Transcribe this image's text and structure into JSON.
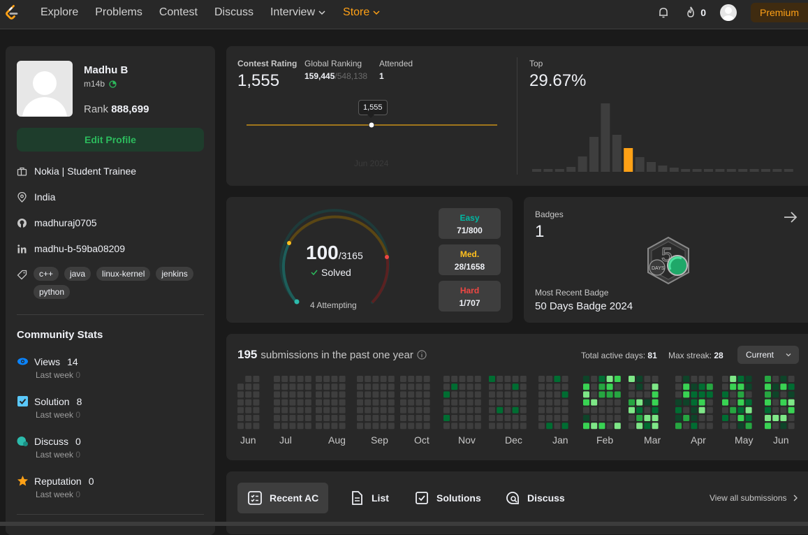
{
  "nav": {
    "links": [
      "Explore",
      "Problems",
      "Contest",
      "Discuss",
      "Interview",
      "Store"
    ],
    "streak": "0",
    "premium": "Premium"
  },
  "profile": {
    "name": "Madhu B",
    "handle": "m14b",
    "rank_label": "Rank",
    "rank": "888,699",
    "edit_profile": "Edit Profile",
    "company": "Nokia | Student Trainee",
    "location": "India",
    "github": "madhuraj0705",
    "linkedin": "madhu-b-59ba08209",
    "skills": [
      "c++",
      "java",
      "linux-kernel",
      "jenkins",
      "python"
    ]
  },
  "community": {
    "title": "Community Stats",
    "last_week_label": "Last week",
    "stats": [
      {
        "label": "Views",
        "value": "14",
        "last_week": "0",
        "icon": "eye-icon",
        "color": "#0a84ff"
      },
      {
        "label": "Solution",
        "value": "8",
        "last_week": "0",
        "icon": "solution-icon",
        "color": "#5ac8fa"
      },
      {
        "label": "Discuss",
        "value": "0",
        "last_week": "0",
        "icon": "discuss-icon",
        "color": "#2cbbac"
      },
      {
        "label": "Reputation",
        "value": "0",
        "last_week": "0",
        "icon": "star-icon",
        "color": "#ffa116"
      }
    ]
  },
  "contest": {
    "rating_label": "Contest Rating",
    "rating": "1,555",
    "global_label": "Global Ranking",
    "global_rank": "159,445",
    "global_total": "/548,138",
    "attended_label": "Attended",
    "attended": "1",
    "tooltip": "1,555",
    "date": "Jun 2024",
    "top_label": "Top",
    "top_value": "29.67%",
    "histogram": [
      0.04,
      0.04,
      0.04,
      0.07,
      0.22,
      0.5,
      0.98,
      0.53,
      0.34,
      0.21,
      0.14,
      0.09,
      0.06,
      0.04,
      0.04,
      0.04,
      0.04,
      0.04,
      0.04,
      0.04,
      0.04,
      0.04,
      0.04
    ],
    "highlight_index": 8
  },
  "solved": {
    "count": "100",
    "total": "/3165",
    "solved_label": "Solved",
    "attempting": "4 Attempting",
    "difficulties": [
      {
        "label": "Easy",
        "value": "71/800",
        "color": "#00b8a3"
      },
      {
        "label": "Med.",
        "value": "28/1658",
        "color": "#ffc01e"
      },
      {
        "label": "Hard",
        "value": "1/707",
        "color": "#ef4743"
      }
    ]
  },
  "badges": {
    "label": "Badges",
    "count": "1",
    "recent_label": "Most Recent Badge",
    "recent_name": "50 Days Badge 2024",
    "badge_text": "DAYS"
  },
  "submissions": {
    "count": "195",
    "text": "submissions in the past one year",
    "active_days_label": "Total active days:",
    "active_days": "81",
    "streak_label": "Max streak:",
    "streak": "28",
    "dropdown": "Current",
    "months": [
      "Jun",
      "Jul",
      "Aug",
      "Sep",
      "Oct",
      "Nov",
      "Dec",
      "Jan",
      "Feb",
      "Mar",
      "Apr",
      "May",
      "Jun"
    ]
  },
  "tabs": {
    "items": [
      {
        "label": "Recent AC",
        "icon": "recent-ac-icon"
      },
      {
        "label": "List",
        "icon": "list-icon"
      },
      {
        "label": "Solutions",
        "icon": "solutions-icon"
      },
      {
        "label": "Discuss",
        "icon": "discuss-tab-icon"
      }
    ],
    "view_all": "View all submissions"
  }
}
